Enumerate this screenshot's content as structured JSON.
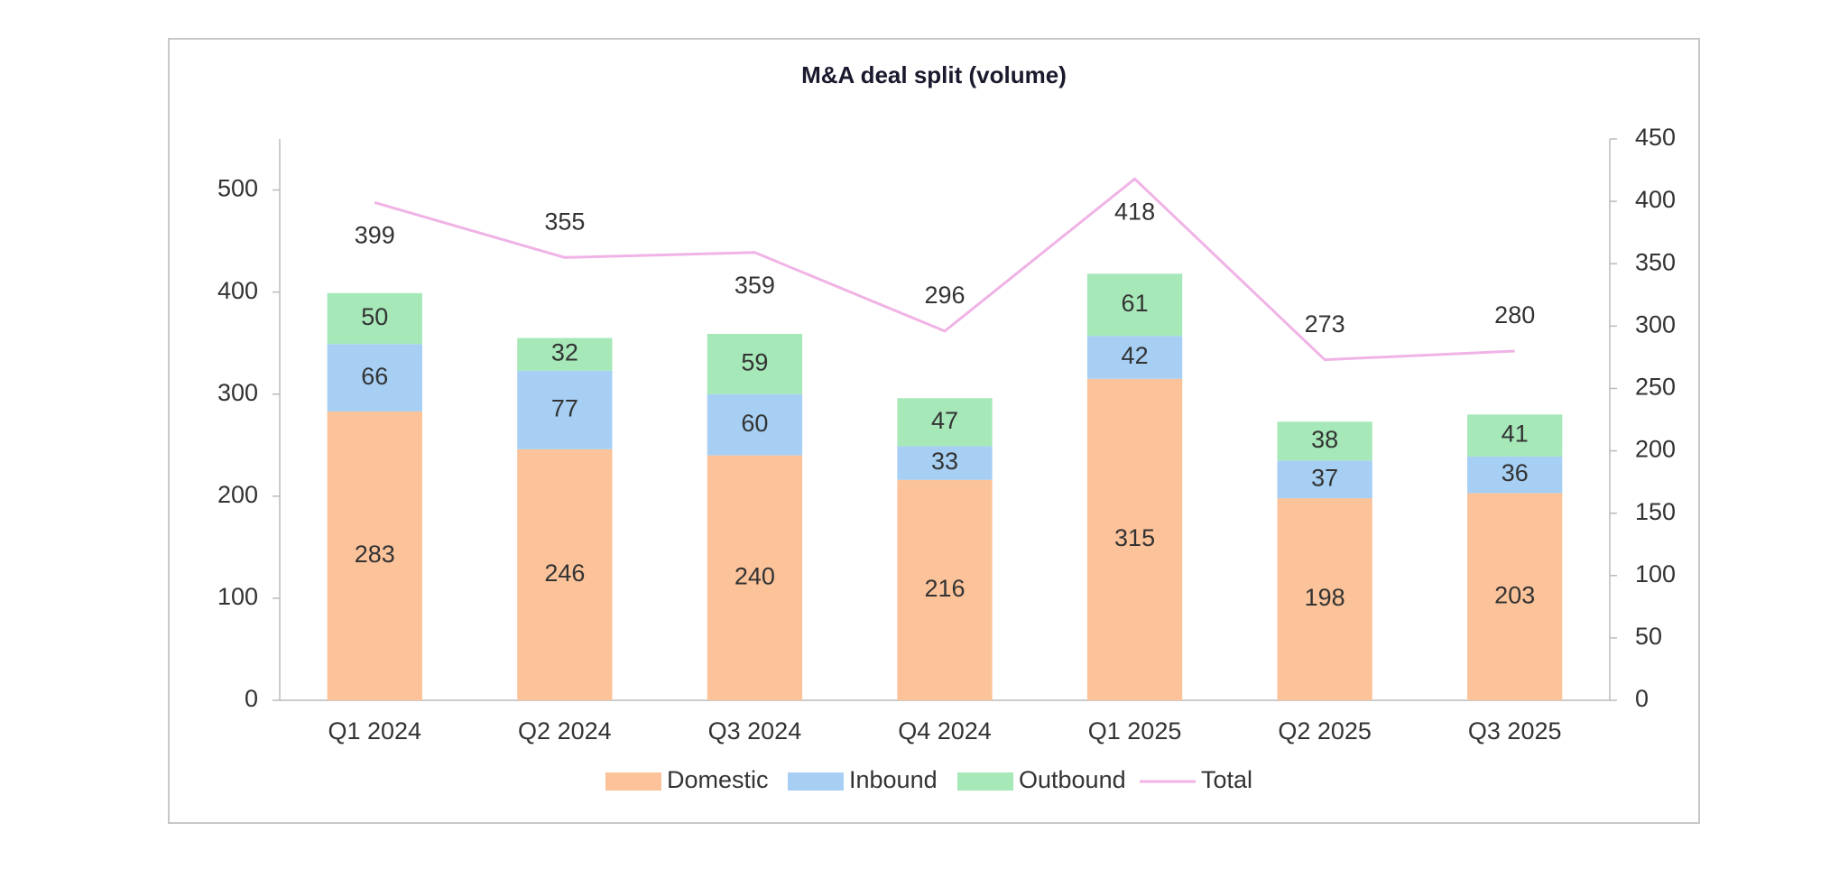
{
  "chart_data": {
    "type": "bar",
    "title": "M&A deal split (volume)",
    "categories": [
      "Q1 2024",
      "Q2 2024",
      "Q3 2024",
      "Q4 2024",
      "Q1 2025",
      "Q2 2025",
      "Q3 2025"
    ],
    "series": [
      {
        "name": "Domestic",
        "type": "bar",
        "color": "#fcc39a",
        "values": [
          283,
          246,
          240,
          216,
          315,
          198,
          203
        ]
      },
      {
        "name": "Inbound",
        "type": "bar",
        "color": "#a6cff3",
        "values": [
          66,
          77,
          60,
          33,
          42,
          37,
          36
        ]
      },
      {
        "name": "Outbound",
        "type": "bar",
        "color": "#a6e8b8",
        "values": [
          50,
          32,
          59,
          47,
          61,
          38,
          41
        ]
      },
      {
        "name": "Total",
        "type": "line",
        "axis": "y2",
        "color": "#f0b3e6",
        "values": [
          399,
          355,
          359,
          296,
          418,
          273,
          280
        ]
      }
    ],
    "stacked": true,
    "ylim": [
      0,
      550
    ],
    "yticks": [
      0,
      100,
      200,
      300,
      400,
      500
    ],
    "y2lim": [
      0,
      450
    ],
    "y2ticks": [
      0,
      50,
      100,
      150,
      200,
      250,
      300,
      350,
      400,
      450
    ],
    "legend": "bottom"
  }
}
